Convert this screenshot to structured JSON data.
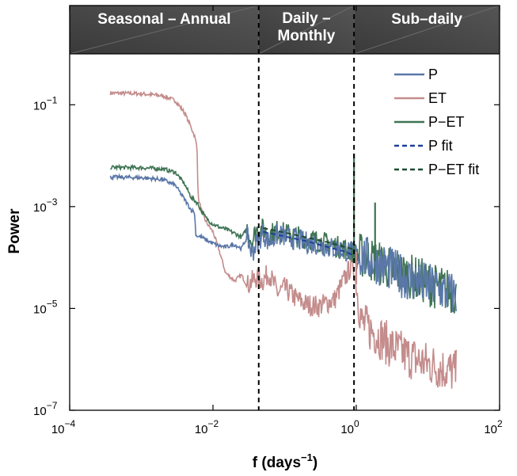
{
  "chart_data": {
    "type": "line",
    "xlabel": "f (days",
    "xlabel_exp": "−1",
    "xlabel_close": ")",
    "ylabel": "Power",
    "xscale": "log",
    "yscale": "log",
    "xlim": [
      0.0001,
      100
    ],
    "ylim": [
      1e-07,
      1
    ],
    "grid": false,
    "legend_position": "top-right",
    "x_ticks": [
      {
        "value": 0.0001,
        "base": "10",
        "exp": "−4"
      },
      {
        "value": 0.01,
        "base": "10",
        "exp": "−2"
      },
      {
        "value": 1,
        "base": "10",
        "exp": "0"
      },
      {
        "value": 100,
        "base": "10",
        "exp": "2"
      }
    ],
    "y_ticks": [
      {
        "value": 1e-07,
        "base": "10",
        "exp": "−7"
      },
      {
        "value": 1e-05,
        "base": "10",
        "exp": "−5"
      },
      {
        "value": 0.001,
        "base": "10",
        "exp": "−3"
      },
      {
        "value": 0.1,
        "base": "10",
        "exp": "−1"
      }
    ],
    "bands": [
      {
        "label_lines": [
          "Seasonal – Annual"
        ],
        "x_start": 0.0001,
        "x_end": 0.0435
      },
      {
        "label_lines": [
          "Daily –",
          "Monthly"
        ],
        "x_start": 0.0435,
        "x_end": 0.93
      },
      {
        "label_lines": [
          "Sub–daily"
        ],
        "x_start": 0.93,
        "x_end": 100
      }
    ],
    "boundaries": [
      0.0435,
      0.93
    ],
    "series": [
      {
        "name": "P",
        "color": "#5a77a8",
        "style": "solid",
        "points": [
          [
            0.00037,
            0.0038
          ],
          [
            0.001,
            0.0037
          ],
          [
            0.002,
            0.0034
          ],
          [
            0.003,
            0.0026
          ],
          [
            0.004,
            0.0014
          ],
          [
            0.005,
            0.00085
          ],
          [
            0.0055,
            0.0008
          ],
          [
            0.0058,
            0.00027
          ],
          [
            0.007,
            0.00025
          ],
          [
            0.008,
            0.00022
          ],
          [
            0.01,
            0.00019
          ],
          [
            0.012,
            0.00017
          ],
          [
            0.015,
            0.00016
          ],
          [
            0.02,
            0.00018
          ],
          [
            0.025,
            0.00015
          ],
          [
            0.03,
            0.00025
          ],
          [
            0.035,
            0.00012
          ],
          [
            0.04,
            0.00018
          ],
          [
            0.05,
            0.0003
          ],
          [
            0.06,
            0.0002
          ],
          [
            0.08,
            0.00028
          ],
          [
            0.1,
            0.00026
          ],
          [
            0.15,
            0.00022
          ],
          [
            0.2,
            0.0002
          ],
          [
            0.3,
            0.00018
          ],
          [
            0.5,
            0.00015
          ],
          [
            0.8,
            0.00013
          ],
          [
            1.0,
            0.00012
          ],
          [
            1.5,
            9e-05
          ],
          [
            2,
            8e-05
          ],
          [
            3,
            6e-05
          ],
          [
            5,
            4e-05
          ],
          [
            8,
            3.2e-05
          ],
          [
            12,
            2.6e-05
          ],
          [
            20,
            2e-05
          ],
          [
            25,
            1.8e-05
          ]
        ]
      },
      {
        "name": "ET",
        "color": "#c48c8c",
        "style": "solid",
        "points": [
          [
            0.00037,
            0.17
          ],
          [
            0.001,
            0.165
          ],
          [
            0.002,
            0.15
          ],
          [
            0.003,
            0.12
          ],
          [
            0.004,
            0.07
          ],
          [
            0.005,
            0.035
          ],
          [
            0.0055,
            0.025
          ],
          [
            0.006,
            0.015
          ],
          [
            0.0062,
            0.0015
          ],
          [
            0.007,
            0.0008
          ],
          [
            0.008,
            0.0005
          ],
          [
            0.01,
            0.00032
          ],
          [
            0.012,
            0.00015
          ],
          [
            0.015,
            5e-05
          ],
          [
            0.02,
            3.5e-05
          ],
          [
            0.025,
            4.5e-05
          ],
          [
            0.03,
            2.8e-05
          ],
          [
            0.04,
            4e-05
          ],
          [
            0.05,
            3.5e-05
          ],
          [
            0.06,
            5e-05
          ],
          [
            0.08,
            2e-05
          ],
          [
            0.1,
            2.5e-05
          ],
          [
            0.15,
            1.5e-05
          ],
          [
            0.2,
            1.2e-05
          ],
          [
            0.3,
            1.1e-05
          ],
          [
            0.5,
            1.5e-05
          ],
          [
            0.7,
            4e-05
          ],
          [
            0.9,
            8e-05
          ],
          [
            1.0,
            3e-05
          ],
          [
            1.2,
            5e-06
          ],
          [
            1.5,
            4e-06
          ],
          [
            2,
            3e-06
          ],
          [
            3,
            1.8e-06
          ],
          [
            5,
            1.2e-06
          ],
          [
            8,
            9e-07
          ],
          [
            12,
            7.5e-07
          ],
          [
            20,
            6e-07
          ],
          [
            25,
            5.5e-07
          ]
        ]
      },
      {
        "name": "P−ET",
        "color": "#3e7353",
        "style": "solid",
        "points": [
          [
            0.00037,
            0.0059
          ],
          [
            0.001,
            0.0058
          ],
          [
            0.002,
            0.0055
          ],
          [
            0.003,
            0.0047
          ],
          [
            0.004,
            0.0028
          ],
          [
            0.005,
            0.0015
          ],
          [
            0.006,
            0.0012
          ],
          [
            0.007,
            0.0008
          ],
          [
            0.008,
            0.0006
          ],
          [
            0.01,
            0.00045
          ],
          [
            0.012,
            0.0004
          ],
          [
            0.015,
            0.00036
          ],
          [
            0.02,
            0.0003
          ],
          [
            0.025,
            0.00025
          ],
          [
            0.03,
            0.00037
          ],
          [
            0.035,
            0.0002
          ],
          [
            0.04,
            0.00035
          ],
          [
            0.05,
            0.00036
          ],
          [
            0.06,
            0.00028
          ],
          [
            0.08,
            0.00034
          ],
          [
            0.1,
            0.0003
          ],
          [
            0.15,
            0.00026
          ],
          [
            0.2,
            0.00024
          ],
          [
            0.3,
            0.00021
          ],
          [
            0.5,
            0.00017
          ],
          [
            0.8,
            0.00014
          ],
          [
            1.0,
            0.00012
          ],
          [
            1.5,
            9.5e-05
          ],
          [
            2,
            8e-05
          ],
          [
            3,
            6e-05
          ],
          [
            5,
            4.5e-05
          ],
          [
            8,
            3.6e-05
          ],
          [
            12,
            2.8e-05
          ],
          [
            20,
            2.2e-05
          ],
          [
            25,
            2e-05
          ]
        ]
      },
      {
        "name": "P fit",
        "color": "#1f3f9c",
        "style": "dashed",
        "points": [
          [
            0.05,
            0.00032
          ],
          [
            0.1,
            0.00026
          ],
          [
            0.2,
            0.00021
          ],
          [
            0.4,
            0.00016
          ],
          [
            0.7,
            0.00013
          ],
          [
            0.93,
            0.00011
          ]
        ]
      },
      {
        "name": "P−ET fit",
        "color": "#1f4a33",
        "style": "dashed",
        "points": [
          [
            0.05,
            0.00038
          ],
          [
            0.1,
            0.00031
          ],
          [
            0.2,
            0.00025
          ],
          [
            0.4,
            0.0002
          ],
          [
            0.7,
            0.00016
          ],
          [
            0.93,
            0.000145
          ]
        ]
      }
    ],
    "spikes": [
      {
        "series": "P−ET",
        "x": 0.93,
        "y_top": 0.011
      },
      {
        "series": "P−ET",
        "x": 1.83,
        "y_top": 0.0012
      },
      {
        "series": "ET",
        "x": 1.0,
        "y_top": 0.00013
      }
    ]
  }
}
